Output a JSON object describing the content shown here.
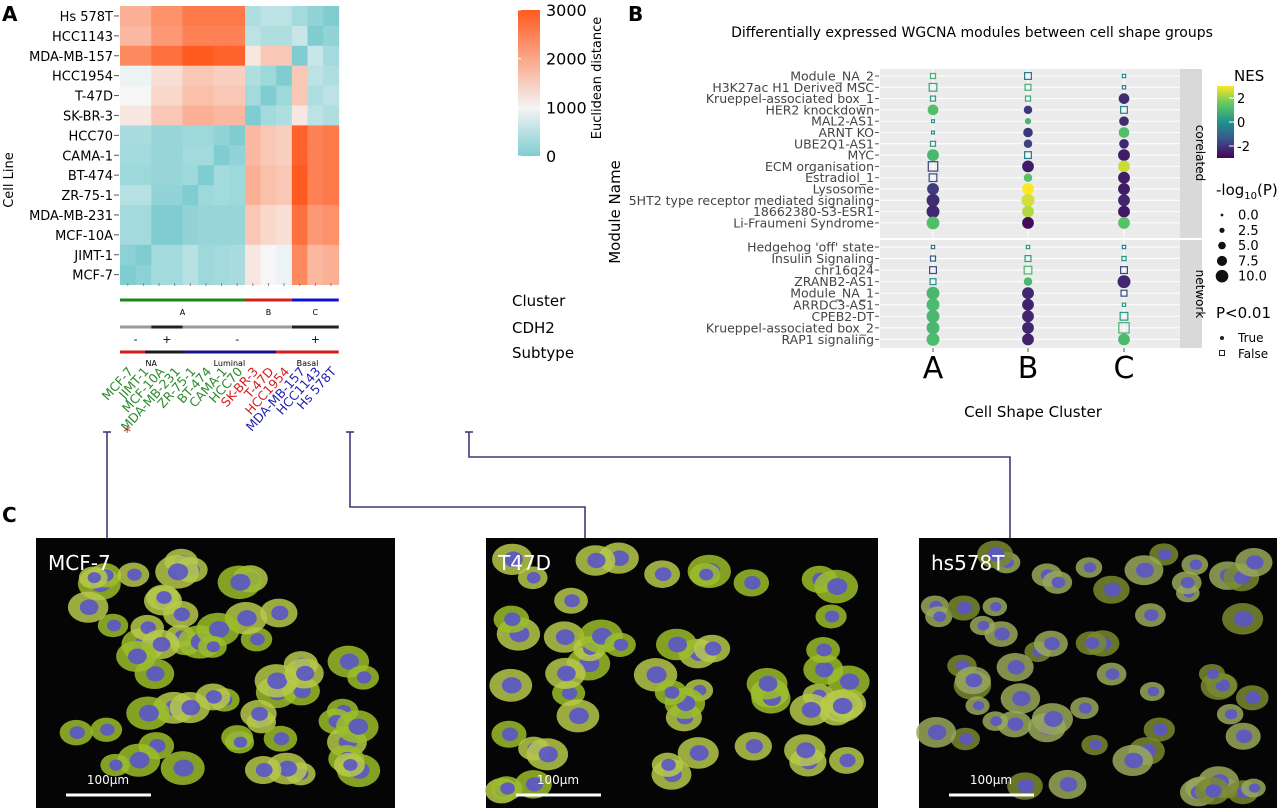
{
  "panels": {
    "a": "A",
    "b": "B",
    "c": "C"
  },
  "chart_data": [
    {
      "type": "heatmap",
      "ylabel": "Cell Line",
      "rows": [
        "Hs 578T",
        "HCC1143",
        "MDA-MB-157",
        "HCC1954",
        "T-47D",
        "SK-BR-3",
        "HCC70",
        "CAMA-1",
        "BT-474",
        "ZR-75-1",
        "MDA-MB-231",
        "MCF-10A",
        "JIMT-1",
        "MCF-7"
      ],
      "columns": [
        "MCF-7",
        "JIMT-1",
        "MCF-10A",
        "MDA-MB-231",
        "ZR-75-1",
        "BT-474",
        "CAMA-1",
        "HCC70",
        "SK-BR-3",
        "T-47D",
        "HCC1954",
        "MDA-MB-157",
        "HCC1143",
        "Hs 578T"
      ],
      "column_colors": [
        "#2a8a2a",
        "#2a8a2a",
        "#2a8a2a",
        "#2a8a2a",
        "#2a8a2a",
        "#2a8a2a",
        "#2a8a2a",
        "#2a8a2a",
        "#d42020",
        "#d42020",
        "#d42020",
        "#1f1fb0",
        "#1f1fb0",
        "#1f1fb0"
      ],
      "column_marks": [
        "",
        "",
        "*",
        "",
        "",
        "",
        "",
        "",
        "",
        "",
        "",
        "",
        "",
        ""
      ],
      "values": [
        [
          1900,
          1900,
          2300,
          2300,
          2600,
          2600,
          2600,
          2600,
          400,
          500,
          500,
          300,
          150,
          0
        ],
        [
          1800,
          1800,
          2200,
          2200,
          2500,
          2500,
          2500,
          2500,
          500,
          400,
          400,
          600,
          0,
          150
        ],
        [
          2400,
          2400,
          2700,
          2700,
          3000,
          3000,
          2900,
          2900,
          1200,
          1600,
          1600,
          0,
          600,
          300
        ],
        [
          900,
          900,
          1300,
          1300,
          1600,
          1600,
          1500,
          1500,
          400,
          250,
          0,
          1600,
          500,
          400
        ],
        [
          1000,
          1000,
          1400,
          1400,
          1700,
          1700,
          1600,
          1600,
          300,
          0,
          250,
          1600,
          400,
          500
        ],
        [
          1200,
          1200,
          1600,
          1600,
          1900,
          1900,
          1800,
          1800,
          0,
          300,
          400,
          1200,
          500,
          400
        ],
        [
          350,
          350,
          200,
          200,
          250,
          250,
          150,
          0,
          1800,
          1600,
          1500,
          2900,
          2500,
          2600
        ],
        [
          300,
          300,
          200,
          200,
          300,
          300,
          0,
          150,
          1800,
          1600,
          1500,
          2900,
          2500,
          2600
        ],
        [
          250,
          250,
          200,
          200,
          250,
          0,
          300,
          250,
          1900,
          1700,
          1600,
          3000,
          2500,
          2600
        ],
        [
          450,
          450,
          150,
          150,
          0,
          250,
          300,
          250,
          1900,
          1700,
          1600,
          3000,
          2500,
          2600
        ],
        [
          300,
          300,
          0,
          0,
          150,
          200,
          200,
          200,
          1600,
          1400,
          1300,
          2700,
          2200,
          2300
        ],
        [
          300,
          300,
          0,
          0,
          150,
          200,
          200,
          200,
          1600,
          1400,
          1300,
          2700,
          2200,
          2300
        ],
        [
          100,
          0,
          300,
          300,
          450,
          250,
          300,
          350,
          1200,
          1000,
          900,
          2400,
          1800,
          1900
        ],
        [
          0,
          100,
          300,
          300,
          450,
          250,
          300,
          350,
          1200,
          1000,
          900,
          2400,
          1800,
          1900
        ]
      ],
      "colorbar": {
        "label": "Euclidean distance",
        "ticks": [
          "3000",
          "2000",
          "1000",
          "0"
        ],
        "min": 0,
        "max": 3000,
        "colors": [
          "#7fcdd1",
          "#f7f7f7",
          "#ff5a1f"
        ]
      },
      "tracks": [
        {
          "name": "Cluster",
          "segments": [
            {
              "label": "A",
              "start": 0,
              "end": 8,
              "color": "#1a8a1a"
            },
            {
              "label": "B",
              "start": 8,
              "end": 11,
              "color": "#d81b1b"
            },
            {
              "label": "C",
              "start": 11,
              "end": 14,
              "color": "#1010d0"
            }
          ]
        },
        {
          "name": "CDH2",
          "segments": [
            {
              "label": "-",
              "start": 0,
              "end": 2,
              "color": "#9a9a9a"
            },
            {
              "label": "+",
              "start": 2,
              "end": 4,
              "color": "#222222"
            },
            {
              "label": "-",
              "start": 4,
              "end": 11,
              "color": "#9a9a9a"
            },
            {
              "label": "+",
              "start": 11,
              "end": 14,
              "color": "#222222"
            }
          ]
        },
        {
          "name": "Subtype",
          "segments": [
            {
              "label": "NA",
              "start": 0,
              "end": 4,
              "color": "#1a1a1a",
              "edge": "#d81b1b"
            },
            {
              "label": "Luminal",
              "start": 4,
              "end": 10,
              "color": "#14148a",
              "edge": "#14148a"
            },
            {
              "label": "Basal",
              "start": 10,
              "end": 14,
              "color": "#d81b1b",
              "edge": "#d81b1b"
            }
          ]
        }
      ]
    },
    {
      "type": "scatter",
      "title": "Differentially expressed WGCNA modules between cell shape groups",
      "xlabel": "Cell Shape Cluster",
      "ylabel": "Module Name",
      "categories": [
        "A",
        "B",
        "C"
      ],
      "facets": [
        {
          "name": "corelated",
          "modules": [
            "Module_NA_2",
            "H3K27ac H1 Derived MSC",
            "Krueppel-associated box_1",
            "HER2 knockdown",
            "MAL2-AS1",
            "ARNT KO",
            "UBE2Q1-AS1",
            "MYC",
            "ECM organisation",
            "Estradiol_1",
            "Lysosome",
            "5HT2 type receptor mediated signaling",
            "18662380-S3-ESR1",
            "Li-Fraumeni Syndrome"
          ]
        },
        {
          "name": "network",
          "modules": [
            "Hedgehog 'off' state",
            "Insulin Signaling",
            "chr16q24",
            "ZRANB2-AS1",
            "Module_NA_1",
            "ARRDC3-AS1",
            "CPEB2-DT",
            "Krueppel-associated box_2",
            "RAP1 signaling"
          ]
        }
      ],
      "nes": [
        [
          0.8,
          -0.5,
          0.0
        ],
        [
          0.5,
          0.8,
          -0.3
        ],
        [
          0.3,
          0.6,
          -2.2
        ],
        [
          1.2,
          -2.0,
          -0.3
        ],
        [
          0.0,
          1.0,
          -2.2
        ],
        [
          -0.3,
          -2.0,
          1.2
        ],
        [
          0.3,
          -1.8,
          -2.3
        ],
        [
          1.0,
          -0.5,
          -2.5
        ],
        [
          -1.8,
          -2.5,
          2.5
        ],
        [
          -1.7,
          1.3,
          -2.5
        ],
        [
          -1.9,
          3.0,
          -2.5
        ],
        [
          -2.2,
          2.6,
          -2.3
        ],
        [
          -2.3,
          2.3,
          -2.6
        ],
        [
          1.2,
          -2.8,
          1.3
        ],
        [
          -0.6,
          0.2,
          -0.3
        ],
        [
          -1.3,
          0.3,
          0.1
        ],
        [
          -1.6,
          1.0,
          -1.7
        ],
        [
          0.0,
          1.0,
          -2.3
        ],
        [
          1.0,
          -2.3,
          -1.6
        ],
        [
          1.1,
          -2.4,
          0.3
        ],
        [
          1.0,
          -2.3,
          0.2
        ],
        [
          1.0,
          -2.3,
          0.9
        ],
        [
          1.1,
          -2.4,
          1.1
        ]
      ],
      "neglog10p": [
        [
          3,
          5,
          1
        ],
        [
          6,
          4,
          1
        ],
        [
          3,
          3,
          7
        ],
        [
          7,
          5,
          5
        ],
        [
          0.5,
          3,
          6
        ],
        [
          0.5,
          6,
          7
        ],
        [
          3,
          5,
          6
        ],
        [
          8,
          5,
          8
        ],
        [
          8,
          8,
          8
        ],
        [
          6,
          5,
          8
        ],
        [
          8,
          8,
          8
        ],
        [
          9,
          9,
          8
        ],
        [
          9,
          8,
          8
        ],
        [
          9,
          8,
          8
        ],
        [
          1,
          1,
          1
        ],
        [
          3,
          4,
          2
        ],
        [
          5,
          6,
          5
        ],
        [
          4,
          5,
          9
        ],
        [
          9,
          8,
          4
        ],
        [
          9,
          8,
          1
        ],
        [
          9,
          8,
          6
        ],
        [
          9,
          8,
          9
        ],
        [
          9,
          8,
          8
        ]
      ],
      "significant": [
        [
          false,
          false,
          false
        ],
        [
          false,
          false,
          false
        ],
        [
          false,
          false,
          true
        ],
        [
          true,
          true,
          false
        ],
        [
          false,
          true,
          true
        ],
        [
          false,
          true,
          true
        ],
        [
          false,
          true,
          true
        ],
        [
          true,
          false,
          true
        ],
        [
          false,
          true,
          true
        ],
        [
          false,
          true,
          true
        ],
        [
          true,
          true,
          true
        ],
        [
          true,
          true,
          true
        ],
        [
          true,
          true,
          true
        ],
        [
          true,
          true,
          true
        ],
        [
          false,
          false,
          false
        ],
        [
          false,
          false,
          false
        ],
        [
          false,
          false,
          false
        ],
        [
          false,
          true,
          true
        ],
        [
          true,
          true,
          false
        ],
        [
          true,
          true,
          false
        ],
        [
          true,
          true,
          false
        ],
        [
          true,
          true,
          false
        ],
        [
          true,
          true,
          true
        ]
      ],
      "legend": {
        "nes_title": "NES",
        "nes_ticks": [
          "2",
          "0",
          "-2"
        ],
        "nes_range": [
          -3,
          3
        ],
        "p_title_main": "-log",
        "p_title_sub": "10",
        "p_title_end": "(P)",
        "p_ticks": [
          "0.0",
          "2.5",
          "5.0",
          "7.5",
          "10.0"
        ],
        "sig_title": "P<0.01",
        "sig_true": "True",
        "sig_false": "False"
      }
    }
  ],
  "panel_c": {
    "images": [
      {
        "label": "MCF-7",
        "scale": "100μm",
        "link_column": "MCF-7"
      },
      {
        "label": "T47D",
        "scale": "100μm",
        "link_column": "T-47D"
      },
      {
        "label": "hs578T",
        "scale": "100μm",
        "link_column": "Hs 578T"
      }
    ]
  },
  "colors": {
    "viridis": [
      "#440154",
      "#3b528b",
      "#21918c",
      "#5ec962",
      "#fde725"
    ],
    "facet_strip": "#d9d9d9",
    "panel_bg": "#ebebeb",
    "link": "#3c3c78"
  }
}
